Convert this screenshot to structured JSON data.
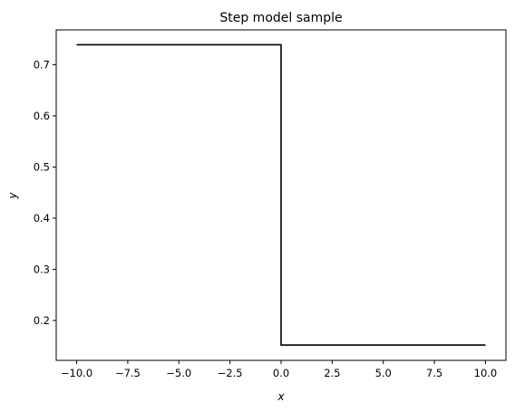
{
  "chart_data": {
    "type": "line",
    "title": "Step model sample",
    "xlabel": "x",
    "ylabel": "y",
    "xlim": [
      -11,
      11
    ],
    "ylim": [
      0.122,
      0.768
    ],
    "xticks": [
      -10.0,
      -7.5,
      -5.0,
      -2.5,
      0.0,
      2.5,
      5.0,
      7.5,
      10.0
    ],
    "xtick_labels": [
      "−10.0",
      "−7.5",
      "−5.0",
      "−2.5",
      "0.0",
      "2.5",
      "5.0",
      "7.5",
      "10.0"
    ],
    "yticks": [
      0.2,
      0.3,
      0.4,
      0.5,
      0.6,
      0.7
    ],
    "ytick_labels": [
      "0.2",
      "0.3",
      "0.4",
      "0.5",
      "0.6",
      "0.7"
    ],
    "grid": false,
    "series": [
      {
        "color": "#000000",
        "x": [
          -10,
          0,
          0,
          10
        ],
        "y": [
          0.739,
          0.739,
          0.152,
          0.152
        ]
      }
    ]
  }
}
